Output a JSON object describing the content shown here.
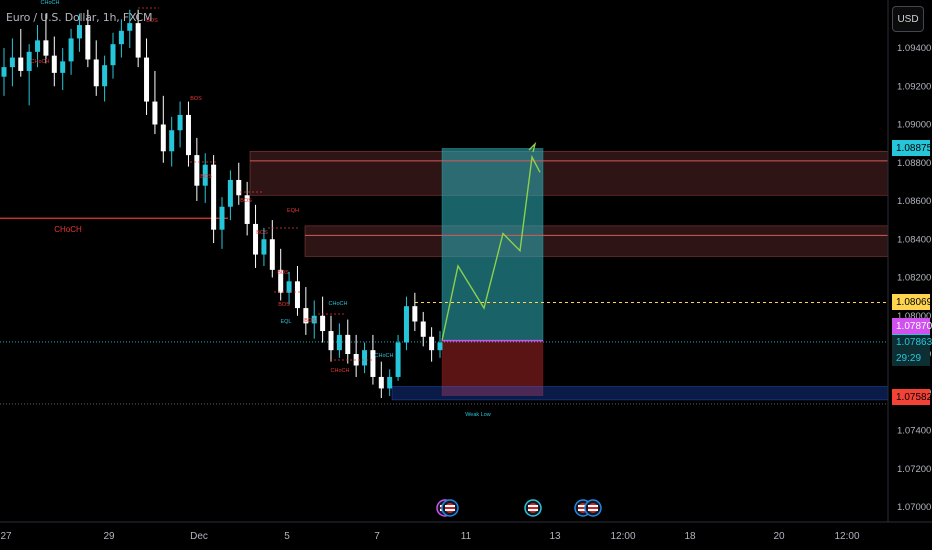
{
  "header": {
    "symbol": "Euro / U.S. Dollar, 1h, FXCM",
    "currency_button": "USD"
  },
  "colors": {
    "background": "#000000",
    "candle_up": "#26c6da",
    "candle_down": "#ffffff",
    "supply_zone": "#d35a5a",
    "target_zone": "#2bb3bd",
    "stop_zone": "#8b1e1e",
    "projection": "#8bd14c",
    "current_price": "#26c6da",
    "ask_line": "#ffd54f",
    "choch_line": "#e53935",
    "entry_line": "#d050f0",
    "stop_tag": "#f44336",
    "target_tag": "#26c6da",
    "demand_zone": "#2962ff"
  },
  "chart_data": {
    "type": "candlestick",
    "instrument": "EUR/USD",
    "timeframe": "1h",
    "y_axis": {
      "ticks": [
        1.094,
        1.092,
        1.09,
        1.088,
        1.086,
        1.084,
        1.082,
        1.08,
        1.078,
        1.076,
        1.074,
        1.072,
        1.07
      ],
      "tick_labels": [
        "1.09400",
        "1.09200",
        "1.09000",
        "1.08800",
        "1.08600",
        "1.08400",
        "1.08200",
        "1.08000",
        "1.07800",
        "1.07600",
        "1.07400",
        "1.07200",
        "1.07000"
      ],
      "range": [
        1.0693,
        1.096
      ]
    },
    "x_axis": {
      "tick_labels": [
        "27",
        "29",
        "Dec",
        "5",
        "7",
        "11",
        "13",
        "12:00",
        "18",
        "20",
        "12:00"
      ]
    },
    "price_tags": [
      {
        "id": "target",
        "value": "1.08875"
      },
      {
        "id": "ask",
        "value": "1.08069"
      },
      {
        "id": "entry",
        "value": "1.07870"
      },
      {
        "id": "current",
        "value": "1.07863",
        "timer": "29:29"
      },
      {
        "id": "stop",
        "value": "1.07582"
      }
    ],
    "zones": [
      {
        "name": "supply-zone-upper",
        "y_top": 1.0886,
        "y_bottom": 1.0863
      },
      {
        "name": "supply-zone-lower",
        "y_top": 1.0847,
        "y_bottom": 1.0831
      },
      {
        "name": "long-target-zone",
        "y_top": 1.08875,
        "y_bottom": 1.0787
      },
      {
        "name": "long-stop-zone",
        "y_top": 1.0787,
        "y_bottom": 1.07582
      },
      {
        "name": "demand-zone",
        "y_top": 1.0763,
        "y_bottom": 1.0756
      }
    ],
    "levels": [
      {
        "name": "choch-level",
        "y": 1.0851
      },
      {
        "name": "ask-line",
        "y": 1.08069
      },
      {
        "name": "current-price-line",
        "y": 1.07863
      },
      {
        "name": "weak-low-line",
        "y": 1.0756
      }
    ],
    "annotations": [
      {
        "text": "CHoCH"
      },
      {
        "text": "BOS"
      },
      {
        "text": "CHoCH"
      },
      {
        "text": "BOS"
      },
      {
        "text": "CHoCH"
      },
      {
        "text": "BOS"
      },
      {
        "text": "BOS"
      },
      {
        "text": "EQH"
      },
      {
        "text": "BOS"
      },
      {
        "text": "BOS"
      },
      {
        "text": "BOS"
      },
      {
        "text": "EQL"
      },
      {
        "text": "CHoCH"
      },
      {
        "text": "BOS"
      },
      {
        "text": "CHoCH"
      },
      {
        "text": "CHoCH"
      },
      {
        "text": "Weak Low"
      }
    ],
    "projection": [
      1.0787,
      1.0826,
      1.0804,
      1.0843,
      1.0834,
      1.0883,
      1.0875
    ],
    "ohlc": [
      [
        1.0925,
        1.094,
        1.0915,
        1.093
      ],
      [
        1.093,
        1.0945,
        1.092,
        1.0935
      ],
      [
        1.0935,
        1.095,
        1.0925,
        1.0928
      ],
      [
        1.0928,
        1.0942,
        1.091,
        1.0938
      ],
      [
        1.0938,
        1.0952,
        1.093,
        1.0944
      ],
      [
        1.0944,
        1.0958,
        1.0932,
        1.0936
      ],
      [
        1.0936,
        1.0946,
        1.092,
        1.0927
      ],
      [
        1.0927,
        1.094,
        1.0918,
        1.0933
      ],
      [
        1.0933,
        1.095,
        1.0926,
        1.0945
      ],
      [
        1.0945,
        1.0958,
        1.0938,
        1.0952
      ],
      [
        1.0952,
        1.096,
        1.093,
        1.0934
      ],
      [
        1.0934,
        1.0944,
        1.0915,
        1.092
      ],
      [
        1.092,
        1.0936,
        1.0912,
        1.0931
      ],
      [
        1.0931,
        1.0948,
        1.0924,
        1.0942
      ],
      [
        1.0942,
        1.0955,
        1.0935,
        1.0949
      ],
      [
        1.0949,
        1.096,
        1.094,
        1.0953
      ],
      [
        1.0953,
        1.096,
        1.093,
        1.0935
      ],
      [
        1.0935,
        1.0945,
        1.0905,
        1.0912
      ],
      [
        1.0912,
        1.0928,
        1.0895,
        1.09
      ],
      [
        1.09,
        1.0915,
        1.088,
        1.0886
      ],
      [
        1.0886,
        1.0904,
        1.0878,
        1.0897
      ],
      [
        1.0897,
        1.0912,
        1.0888,
        1.0905
      ],
      [
        1.0905,
        1.0912,
        1.0878,
        1.0884
      ],
      [
        1.0884,
        1.0893,
        1.086,
        1.0868
      ],
      [
        1.0868,
        1.0885,
        1.0859,
        1.0879
      ],
      [
        1.0879,
        1.0884,
        1.0838,
        1.0845
      ],
      [
        1.0845,
        1.0862,
        1.0835,
        1.0857
      ],
      [
        1.0857,
        1.0876,
        1.085,
        1.0871
      ],
      [
        1.0871,
        1.088,
        1.0858,
        1.0863
      ],
      [
        1.0863,
        1.087,
        1.0842,
        1.0848
      ],
      [
        1.0848,
        1.0858,
        1.0825,
        1.0832
      ],
      [
        1.0832,
        1.0846,
        1.0826,
        1.084
      ],
      [
        1.084,
        1.085,
        1.082,
        1.0824
      ],
      [
        1.0824,
        1.0835,
        1.0808,
        1.0812
      ],
      [
        1.0812,
        1.0823,
        1.0806,
        1.0818
      ],
      [
        1.0818,
        1.0826,
        1.08,
        1.0804
      ],
      [
        1.0804,
        1.0815,
        1.079,
        1.0796
      ],
      [
        1.0796,
        1.0808,
        1.0788,
        1.08
      ],
      [
        1.08,
        1.081,
        1.0786,
        1.0792
      ],
      [
        1.0792,
        1.08,
        1.0776,
        1.0782
      ],
      [
        1.0782,
        1.0796,
        1.0778,
        1.079
      ],
      [
        1.079,
        1.0798,
        1.0775,
        1.078
      ],
      [
        1.078,
        1.079,
        1.0768,
        1.0774
      ],
      [
        1.0774,
        1.0786,
        1.077,
        1.0782
      ],
      [
        1.0782,
        1.079,
        1.0764,
        1.0768
      ],
      [
        1.0768,
        1.0776,
        1.0757,
        1.0762
      ],
      [
        1.0762,
        1.0772,
        1.0758,
        1.0768
      ],
      [
        1.0768,
        1.079,
        1.0766,
        1.0786
      ],
      [
        1.0786,
        1.081,
        1.0782,
        1.0805
      ],
      [
        1.0805,
        1.0812,
        1.0792,
        1.0797
      ],
      [
        1.0797,
        1.0802,
        1.0784,
        1.0789
      ],
      [
        1.0789,
        1.0794,
        1.0776,
        1.0782
      ],
      [
        1.0782,
        1.0792,
        1.0778,
        1.0786
      ]
    ]
  }
}
